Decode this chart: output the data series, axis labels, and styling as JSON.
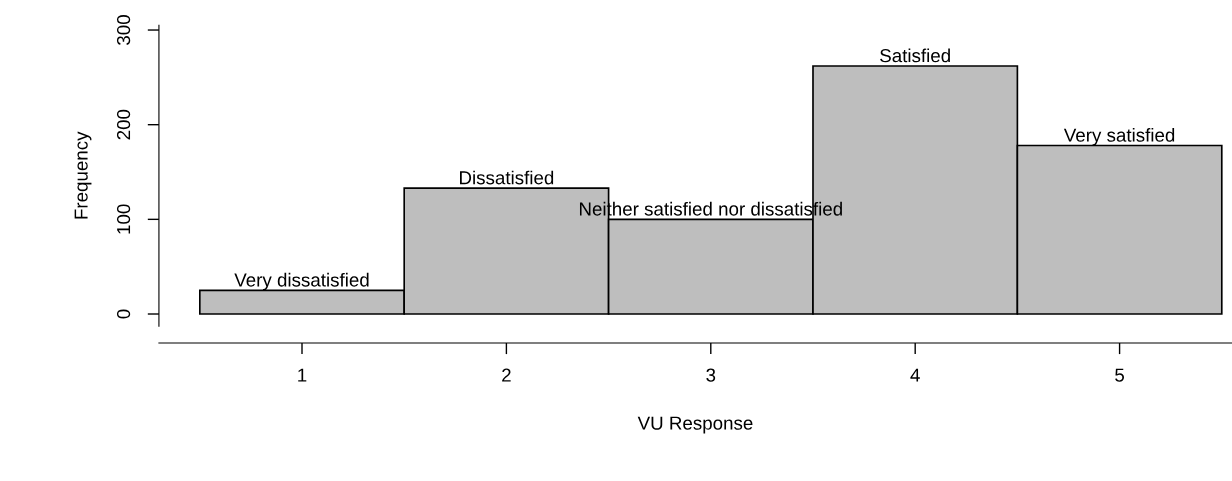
{
  "chart_data": {
    "type": "histogram",
    "xlabel": "VU Response",
    "ylabel": "Frequency",
    "bins": [
      0.5,
      1.5,
      2.5,
      3.5,
      4.5,
      5.5
    ],
    "values": [
      25,
      133,
      100,
      262,
      178
    ],
    "color": "#bebebe",
    "xlim": [
      0.3,
      5.55
    ],
    "ylim": [
      -13,
      305
    ],
    "xticks": [
      1,
      2,
      3,
      4,
      5
    ],
    "yticks": [
      0,
      100,
      200,
      300
    ],
    "grid": false,
    "annotations": [
      {
        "text": "Very dissatisfied",
        "x": 1,
        "y": 25
      },
      {
        "text": "Dissatisfied",
        "x": 2,
        "y": 133
      },
      {
        "text": "Neither satisfied nor dissatisfied",
        "x": 3,
        "y": 100
      },
      {
        "text": "Satisfied",
        "x": 4,
        "y": 262
      },
      {
        "text": "Very satisfied",
        "x": 5,
        "y": 178
      }
    ]
  }
}
